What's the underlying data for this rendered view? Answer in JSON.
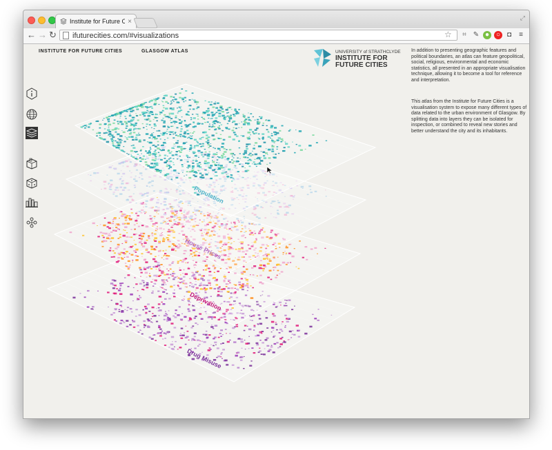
{
  "browser": {
    "tab_title": "Institute for Future Cities",
    "tab_close": "×",
    "url": "ifuturecities.com/#visualizations"
  },
  "site_nav": {
    "home_link": "INSTITUTE FOR FUTURE CITIES",
    "atlas_link": "GLASGOW ATLAS"
  },
  "logo": {
    "university": "UNIVERSITY of STRATHCLYDE",
    "name": "INSTITUTE FOR FUTURE CITIES"
  },
  "sidebar_icons": [
    "info-icon",
    "globe-icon",
    "layers-icon",
    "city-block-icon",
    "dice-icon",
    "buildings-icon",
    "people-network-icon"
  ],
  "description": {
    "paragraph1": "In addition to presenting geographic features and political boundaries, an atlas can feature geopolitical, social, religious, environmental and economic statistics, all presented in an appropriate visualisation technique, allowing it to become a tool for reference and interpretation.",
    "paragraph2": "This atlas from the Institute for Future Cities is a visualisation system to expose many different types of data related to the urban environment of Glasgow. By splitting data into layers they can be isolated for inspection, or combined to reveal new stories and better understand the city and its inhabitants."
  },
  "layers": [
    {
      "label": "Population",
      "color": "#4fb3c9"
    },
    {
      "label": "House Prices",
      "color": "#b070c4"
    },
    {
      "label": "Deprivation",
      "color": "#c2187a"
    },
    {
      "label": "Drug Misuse",
      "color": "#7a2f9a"
    }
  ],
  "colors": {
    "background": "#f1f0ec",
    "teal": "#22a7b4",
    "teal_light": "#5fd4c4",
    "blue_light": "#9fcbe8",
    "pink": "#f0a4cc",
    "magenta": "#e0197a",
    "yellow": "#ffc22a",
    "orange": "#ff8f1f",
    "purple": "#9a3ab8",
    "lavender": "#c89ad8"
  }
}
